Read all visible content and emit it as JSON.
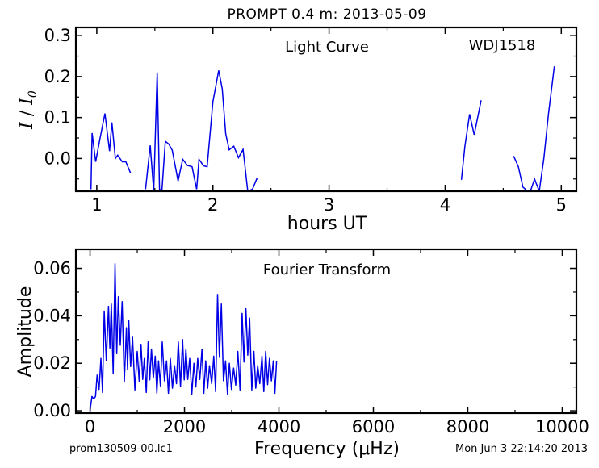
{
  "figure": {
    "title": "PROMPT 0.4 m:  2013-05-09",
    "footer_left": "prom130509-00.lc1",
    "footer_right": "Mon Jun  3 22:14:20 2013"
  },
  "colors": {
    "line": "#0000e6",
    "axes": "#000000",
    "background": "#ffffff"
  },
  "chart_data": [
    {
      "type": "line",
      "annotation_left": "Light Curve",
      "annotation_right": "WDJ1518",
      "xlabel": "hours UT",
      "ylabel": "I / I0",
      "xlim": [
        0.82,
        5.13
      ],
      "ylim": [
        -0.08,
        0.32
      ],
      "xticks": [
        1,
        2,
        3,
        4,
        5
      ],
      "xtick_labels": [
        "1",
        "2",
        "3",
        "4",
        "5"
      ],
      "yticks": [
        0.0,
        0.1,
        0.2,
        0.3
      ],
      "ytick_labels": [
        "0.0",
        "0.1",
        "0.2",
        "0.3"
      ],
      "series": [
        {
          "x": [
            0.95,
            0.96,
            0.99,
            1.03,
            1.07,
            1.11,
            1.13,
            1.16,
            1.18,
            1.22,
            1.25,
            1.29
          ],
          "y": [
            -0.075,
            0.062,
            -0.008,
            0.052,
            0.11,
            0.018,
            0.088,
            0.0,
            0.008,
            -0.008,
            -0.008,
            -0.035
          ]
        },
        {
          "x": [
            1.42,
            1.46,
            1.49,
            1.52,
            1.54,
            1.56,
            1.59,
            1.62,
            1.65,
            1.7,
            1.74,
            1.78,
            1.82,
            1.86,
            1.88,
            1.92,
            1.95,
            2.0,
            2.05,
            2.08,
            2.11,
            2.14,
            2.18,
            2.22,
            2.26,
            2.3,
            2.34,
            2.38
          ],
          "y": [
            -0.075,
            0.032,
            -0.08,
            0.21,
            -0.075,
            -0.08,
            0.042,
            0.035,
            0.02,
            -0.055,
            -0.002,
            -0.017,
            -0.02,
            -0.075,
            -0.002,
            -0.018,
            -0.02,
            0.138,
            0.215,
            0.17,
            0.06,
            0.021,
            0.03,
            0.002,
            0.022,
            -0.08,
            -0.075,
            -0.048
          ]
        },
        {
          "x": [
            4.14,
            4.17,
            4.21,
            4.25,
            4.31
          ],
          "y": [
            -0.052,
            0.03,
            0.108,
            0.058,
            0.142
          ]
        },
        {
          "x": [
            4.59,
            4.63,
            4.67,
            4.71,
            4.74,
            4.77,
            4.81,
            4.85,
            4.89,
            4.94
          ],
          "y": [
            0.006,
            -0.02,
            -0.07,
            -0.08,
            -0.075,
            -0.05,
            -0.08,
            0.0,
            0.11,
            0.225
          ]
        }
      ]
    },
    {
      "type": "line",
      "annotation_left": "Fourier Transform",
      "xlabel": "Frequency (μHz)",
      "ylabel": "Amplitude",
      "xlim": [
        -300,
        10300
      ],
      "ylim": [
        -0.001,
        0.068
      ],
      "xticks": [
        0,
        2000,
        4000,
        6000,
        8000,
        10000
      ],
      "xtick_labels": [
        "0",
        "2000",
        "4000",
        "6000",
        "8000",
        "10000"
      ],
      "yticks": [
        0.0,
        0.02,
        0.04,
        0.06
      ],
      "ytick_labels": [
        "0.00",
        "0.02",
        "0.04",
        "0.06"
      ],
      "peaks": {
        "x": [
          0,
          80,
          150,
          230,
          300,
          390,
          450,
          530,
          600,
          680,
          770,
          820,
          900,
          1000,
          1080,
          1150,
          1230,
          1300,
          1380,
          1450,
          1530,
          1620,
          1700,
          1790,
          1870,
          1960,
          2030,
          2110,
          2200,
          2280,
          2370,
          2450,
          2530,
          2620,
          2700,
          2780,
          2870,
          2950,
          3040,
          3130,
          3220,
          3300,
          3380,
          3470,
          3550,
          3640,
          3720,
          3800,
          3880,
          3950
        ],
        "y": [
          0.0,
          0.005,
          0.015,
          0.022,
          0.042,
          0.044,
          0.045,
          0.062,
          0.048,
          0.046,
          0.035,
          0.038,
          0.031,
          0.025,
          0.028,
          0.022,
          0.029,
          0.026,
          0.023,
          0.021,
          0.029,
          0.021,
          0.022,
          0.019,
          0.029,
          0.03,
          0.026,
          0.022,
          0.02,
          0.022,
          0.026,
          0.021,
          0.019,
          0.023,
          0.049,
          0.045,
          0.021,
          0.02,
          0.018,
          0.025,
          0.041,
          0.043,
          0.039,
          0.025,
          0.019,
          0.023,
          0.025,
          0.022,
          0.021,
          0.021
        ]
      }
    }
  ]
}
